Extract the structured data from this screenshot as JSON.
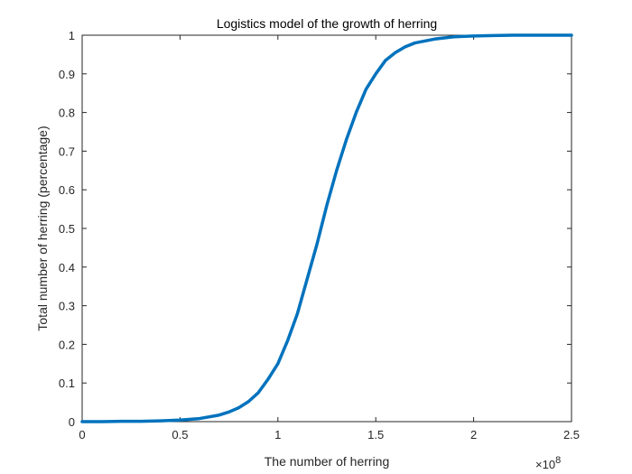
{
  "chart_data": {
    "type": "line",
    "title": "Logistics model of the growth of herring",
    "xlabel": "The number of herring",
    "ylabel": "Total number of herring (percentage)",
    "x_exponent_label": "×10",
    "x_exponent_power": "8",
    "xlim": [
      0,
      2.5
    ],
    "ylim": [
      0,
      1
    ],
    "xticks": [
      0,
      0.5,
      1,
      1.5,
      2,
      2.5
    ],
    "xtick_labels": [
      "0",
      "0.5",
      "1",
      "1.5",
      "2",
      "2.5"
    ],
    "yticks": [
      0,
      0.1,
      0.2,
      0.3,
      0.4,
      0.5,
      0.6,
      0.7,
      0.8,
      0.9,
      1
    ],
    "ytick_labels": [
      "0",
      "0.1",
      "0.2",
      "0.3",
      "0.4",
      "0.5",
      "0.6",
      "0.7",
      "0.8",
      "0.9",
      "1"
    ],
    "grid": false,
    "series": [
      {
        "color": "#0072BD",
        "x": [
          0,
          0.1,
          0.2,
          0.3,
          0.4,
          0.5,
          0.6,
          0.7,
          0.75,
          0.8,
          0.85,
          0.9,
          0.95,
          1.0,
          1.05,
          1.1,
          1.15,
          1.2,
          1.25,
          1.3,
          1.35,
          1.4,
          1.45,
          1.5,
          1.55,
          1.6,
          1.65,
          1.7,
          1.8,
          1.9,
          2.0,
          2.1,
          2.2,
          2.3,
          2.4,
          2.5
        ],
        "y": [
          0.0,
          0.0,
          0.001,
          0.001,
          0.002,
          0.004,
          0.008,
          0.017,
          0.025,
          0.036,
          0.052,
          0.075,
          0.11,
          0.15,
          0.21,
          0.28,
          0.37,
          0.46,
          0.56,
          0.65,
          0.73,
          0.8,
          0.86,
          0.9,
          0.935,
          0.955,
          0.97,
          0.98,
          0.99,
          0.996,
          0.998,
          0.999,
          1.0,
          1.0,
          1.0,
          1.0
        ]
      }
    ]
  }
}
